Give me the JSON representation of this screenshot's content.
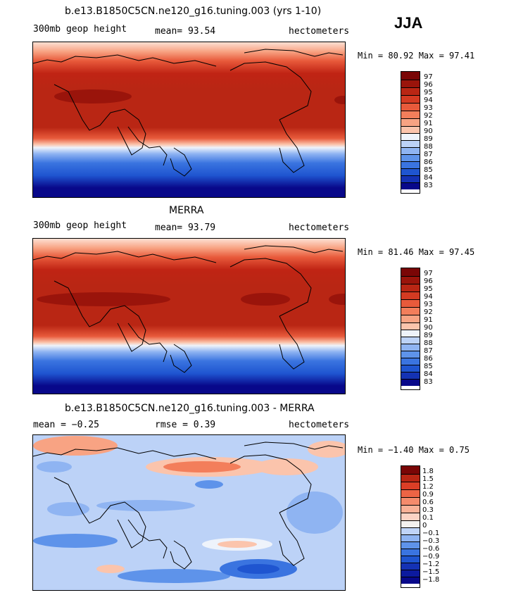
{
  "season": "JJA",
  "colors": {
    "levels13": [
      "#08088a",
      "#1432b4",
      "#1f55d0",
      "#3a74e0",
      "#5e93ea",
      "#8fb4f2",
      "#c0d4f8",
      "#f4f1ef",
      "#fbd3c4",
      "#f9b197",
      "#f58b6c",
      "#ed6445",
      "#db3e26",
      "#c02414",
      "#9e120b",
      "#7a0606"
    ],
    "levels_seq": [
      "#08088a",
      "#1432b4",
      "#1f55d0",
      "#3a74e0",
      "#5e93ea",
      "#8fb4f2",
      "#bcd2f7",
      "#eef3fb",
      "#fde0d3",
      "#fbc4ac",
      "#f8a383",
      "#f37e5b",
      "#e85a3b",
      "#d43a22",
      "#b92614",
      "#9a140b",
      "#7a0606"
    ]
  },
  "panels": [
    {
      "title": "b.e13.B1850C5CN.ne120_g16.tuning.003 (yrs 1-10)",
      "left_label": "300mb geop height",
      "center_label": "mean=  93.54",
      "right_label": "hectometers",
      "minmax": "Min =  80.92 Max =  97.41",
      "ticks": [
        "97",
        "96",
        "95",
        "94",
        "93",
        "92",
        "91",
        "90",
        "89",
        "88",
        "87",
        "86",
        "85",
        "84",
        "83"
      ]
    },
    {
      "title": "MERRA",
      "left_label": "300mb geop height",
      "center_label": "mean=  93.79",
      "right_label": "hectometers",
      "minmax": "Min =  81.46 Max =  97.45",
      "ticks": [
        "97",
        "96",
        "95",
        "94",
        "93",
        "92",
        "91",
        "90",
        "89",
        "88",
        "87",
        "86",
        "85",
        "84",
        "83"
      ]
    },
    {
      "title": "b.e13.B1850C5CN.ne120_g16.tuning.003 - MERRA",
      "left_label": "mean =  −0.25",
      "center_label": "rmse =   0.39",
      "right_label": "hectometers",
      "minmax": "Min =  −1.40 Max =   0.75",
      "ticks": [
        "1.8",
        "1.5",
        "1.2",
        "0.9",
        "0.6",
        "0.3",
        "0.1",
        "0",
        "−0.1",
        "−0.3",
        "−0.6",
        "−0.9",
        "−1.2",
        "−1.5",
        "−1.8"
      ]
    }
  ],
  "chart_data": [
    {
      "type": "heatmap",
      "title": "b.e13.B1850C5CN.ne120_g16.tuning.003 (yrs 1-10)",
      "variable": "300mb geop height",
      "units": "hectometers",
      "mean": 93.54,
      "min": 80.92,
      "max": 97.41,
      "levels": [
        83,
        84,
        85,
        86,
        87,
        88,
        89,
        90,
        91,
        92,
        93,
        94,
        95,
        96,
        97
      ]
    },
    {
      "type": "heatmap",
      "title": "MERRA",
      "variable": "300mb geop height",
      "units": "hectometers",
      "mean": 93.79,
      "min": 81.46,
      "max": 97.45,
      "levels": [
        83,
        84,
        85,
        86,
        87,
        88,
        89,
        90,
        91,
        92,
        93,
        94,
        95,
        96,
        97
      ]
    },
    {
      "type": "heatmap",
      "title": "b.e13.B1850C5CN.ne120_g16.tuning.003 - MERRA",
      "units": "hectometers",
      "mean": -0.25,
      "rmse": 0.39,
      "min": -1.4,
      "max": 0.75,
      "levels": [
        -1.8,
        -1.5,
        -1.2,
        -0.9,
        -0.6,
        -0.3,
        -0.1,
        0,
        0.1,
        0.3,
        0.6,
        0.9,
        1.2,
        1.5,
        1.8
      ]
    }
  ]
}
